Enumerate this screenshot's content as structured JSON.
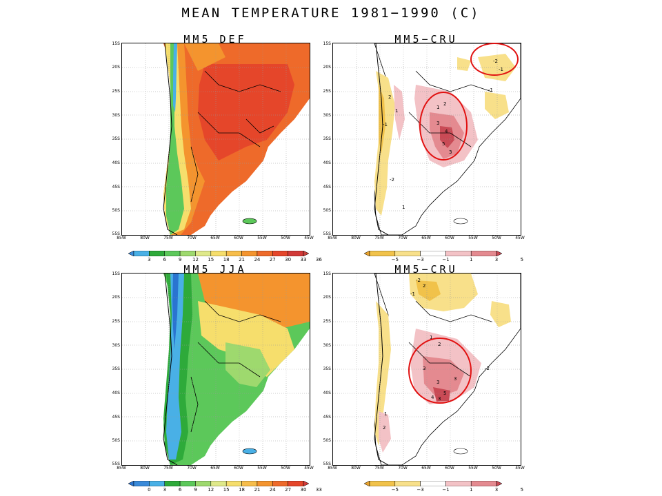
{
  "title": "MEAN TEMPERATURE 1981−1990 (C)",
  "panels": [
    {
      "title": "MM5  DEF",
      "kind": "absolute"
    },
    {
      "title": "MM5−CRU",
      "kind": "difference"
    },
    {
      "title": "MM5  JJA",
      "kind": "absolute"
    },
    {
      "title": "MM5−CRU",
      "kind": "difference"
    }
  ],
  "lat_labels": [
    "15S",
    "20S",
    "25S",
    "30S",
    "35S",
    "40S",
    "45S",
    "50S",
    "55S"
  ],
  "lon_labels": [
    "85W",
    "80W",
    "75W",
    "70W",
    "65W",
    "60W",
    "55W",
    "50W",
    "45W"
  ],
  "colorbars": {
    "def_abs": {
      "ticks": [
        "3",
        "6",
        "9",
        "12",
        "15",
        "18",
        "21",
        "24",
        "27",
        "30",
        "33",
        "36"
      ],
      "colors": [
        "#3a8ad9",
        "#49b0e6",
        "#2eaa3a",
        "#5cc85a",
        "#9ed96e",
        "#dfe98a",
        "#f6de6c",
        "#f7bd4a",
        "#f4942e",
        "#ee6a2a",
        "#e5462a",
        "#d23a38",
        "#c8403a"
      ]
    },
    "jja_abs": {
      "ticks": [
        "0",
        "3",
        "6",
        "9",
        "12",
        "15",
        "18",
        "21",
        "24",
        "27",
        "30",
        "33"
      ],
      "colors": [
        "#2a74d0",
        "#3a8ad9",
        "#49b0e6",
        "#2eaa3a",
        "#5cc85a",
        "#9ed96e",
        "#dfe98a",
        "#f6de6c",
        "#f7bd4a",
        "#f4942e",
        "#ee6a2a",
        "#e5462a",
        "#d23a38"
      ]
    },
    "diff": {
      "ticks": [
        "−5",
        "−3",
        "−1",
        "1",
        "3",
        "5"
      ],
      "colors": [
        "#e8a22e",
        "#f1c24a",
        "#f8e08a",
        "#ffffff",
        "#f3c2c6",
        "#e48a90",
        "#c94a55"
      ]
    }
  },
  "annotations": {
    "circle_color": "#e11111"
  },
  "contour_labels": {
    "def_diff": [
      "-2",
      "-1",
      "1",
      "2",
      "3",
      "4",
      "5",
      "3",
      "-1",
      "1",
      "2",
      "-2",
      "1",
      "-1"
    ],
    "jja_diff": [
      "1",
      "2",
      "3",
      "3",
      "5",
      "3",
      "-2",
      "4",
      "3",
      "2",
      "-1",
      "1",
      "-2",
      "2"
    ]
  }
}
